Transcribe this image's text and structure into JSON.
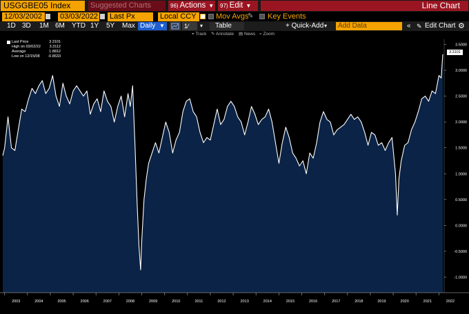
{
  "title_bar": {
    "ticker": "USGGBE05 Index",
    "suggested_charts": "Suggested Charts",
    "actions_num": "96)",
    "actions_label": "Actions",
    "edit_num": "97)",
    "edit_label": "Edit",
    "chart_title": "Line Chart"
  },
  "field_bar": {
    "start_date": "12/03/2002",
    "end_date": "03/03/2022",
    "field": "Last Px",
    "currency": "Local CCY",
    "mov_avgs": "Mov Avgs",
    "key_events": "Key Events"
  },
  "range_bar": {
    "ranges": [
      "1D",
      "3D",
      "1M",
      "6M",
      "YTD",
      "1Y",
      "5Y",
      "Max"
    ],
    "frequency": "Daily",
    "table_label": "Table",
    "quick_add": "+ Quick-Add",
    "add_data_placeholder": "Add Data",
    "edit_chart": "Edit Chart"
  },
  "chart_tools": {
    "track": "Track",
    "annotate": "Annotate",
    "news": "News",
    "zoom": "Zoom"
  },
  "legend": {
    "last_price_label": "Last Price",
    "last_price_value": "3.3101",
    "high_label": "High on 03/02/22",
    "high_value": "3.3112",
    "average_label": "Average",
    "average_value": "1.8812",
    "low_label": "Low on 12/15/08",
    "low_value": "-0.8633"
  },
  "colors": {
    "accent_orange": "#f5a300",
    "title_red": "#9a1522",
    "area_fill": "#0b2346",
    "line": "#ffffff"
  },
  "chart_data": {
    "type": "area",
    "series": [
      {
        "name": "Last Price",
        "x": [
          2002.92,
          2003.0,
          2003.15,
          2003.3,
          2003.45,
          2003.6,
          2003.75,
          2003.9,
          2004.05,
          2004.2,
          2004.35,
          2004.5,
          2004.65,
          2004.8,
          2004.95,
          2005.1,
          2005.25,
          2005.4,
          2005.55,
          2005.7,
          2005.85,
          2006.0,
          2006.15,
          2006.3,
          2006.45,
          2006.6,
          2006.75,
          2006.9,
          2007.05,
          2007.2,
          2007.35,
          2007.5,
          2007.65,
          2007.8,
          2007.95,
          2008.1,
          2008.25,
          2008.4,
          2008.5,
          2008.6,
          2008.7,
          2008.8,
          2008.88,
          2008.95,
          2009.0,
          2009.1,
          2009.2,
          2009.3,
          2009.45,
          2009.6,
          2009.75,
          2009.9,
          2010.05,
          2010.2,
          2010.35,
          2010.5,
          2010.65,
          2010.8,
          2010.95,
          2011.1,
          2011.25,
          2011.4,
          2011.55,
          2011.7,
          2011.85,
          2012.0,
          2012.15,
          2012.3,
          2012.45,
          2012.6,
          2012.75,
          2012.9,
          2013.05,
          2013.2,
          2013.35,
          2013.5,
          2013.65,
          2013.8,
          2013.95,
          2014.1,
          2014.25,
          2014.4,
          2014.55,
          2014.7,
          2014.85,
          2015.0,
          2015.15,
          2015.3,
          2015.45,
          2015.6,
          2015.75,
          2015.9,
          2016.05,
          2016.2,
          2016.35,
          2016.5,
          2016.65,
          2016.8,
          2016.95,
          2017.1,
          2017.25,
          2017.4,
          2017.55,
          2017.7,
          2017.85,
          2018.0,
          2018.15,
          2018.3,
          2018.45,
          2018.6,
          2018.75,
          2018.9,
          2019.05,
          2019.2,
          2019.35,
          2019.5,
          2019.65,
          2019.8,
          2019.95,
          2020.1,
          2020.18,
          2020.25,
          2020.35,
          2020.5,
          2020.65,
          2020.8,
          2020.95,
          2021.1,
          2021.25,
          2021.4,
          2021.55,
          2021.7,
          2021.85,
          2022.0,
          2022.1,
          2022.17
        ],
        "y": [
          1.35,
          1.5,
          2.1,
          1.5,
          1.45,
          1.85,
          2.25,
          2.2,
          2.45,
          2.65,
          2.55,
          2.7,
          2.8,
          2.55,
          2.65,
          2.9,
          2.5,
          2.3,
          2.75,
          2.5,
          2.35,
          2.6,
          2.7,
          2.6,
          2.5,
          2.6,
          2.15,
          2.35,
          2.45,
          2.2,
          2.6,
          2.4,
          2.3,
          2.0,
          2.3,
          2.5,
          2.1,
          2.55,
          2.3,
          2.7,
          1.6,
          0.4,
          -0.4,
          -0.86,
          -0.3,
          0.5,
          0.9,
          1.2,
          1.4,
          1.6,
          1.4,
          1.7,
          2.0,
          1.8,
          1.4,
          1.65,
          1.8,
          2.2,
          2.4,
          2.45,
          2.2,
          2.1,
          1.8,
          1.6,
          1.7,
          1.65,
          1.95,
          2.25,
          1.95,
          2.05,
          2.3,
          2.4,
          2.3,
          2.1,
          2.0,
          1.75,
          2.0,
          2.3,
          2.15,
          1.95,
          2.05,
          2.1,
          2.25,
          2.0,
          1.6,
          1.2,
          1.6,
          1.9,
          1.7,
          1.4,
          1.3,
          1.15,
          1.25,
          1.0,
          1.4,
          1.3,
          1.6,
          2.0,
          2.2,
          2.05,
          2.0,
          1.75,
          1.85,
          1.9,
          1.95,
          2.05,
          2.15,
          2.05,
          2.1,
          2.0,
          1.8,
          1.55,
          1.8,
          1.75,
          1.55,
          1.6,
          1.45,
          1.6,
          1.7,
          1.0,
          0.2,
          0.9,
          1.25,
          1.55,
          1.6,
          1.85,
          2.0,
          2.2,
          2.45,
          2.5,
          2.4,
          2.6,
          2.55,
          2.9,
          2.85,
          3.31
        ]
      }
    ],
    "x_ticks": [
      "2003",
      "2004",
      "2005",
      "2006",
      "2007",
      "2008",
      "2009",
      "2010",
      "2011",
      "2012",
      "2013",
      "2014",
      "2015",
      "2016",
      "2017",
      "2018",
      "2019",
      "2020",
      "2021",
      "2022"
    ],
    "y_ticks": [
      "3.5000",
      "3.0000",
      "2.5000",
      "2.0000",
      "1.5000",
      "1.0000",
      "0.5000",
      "0.0000",
      "-0.5000",
      "-1.0000"
    ],
    "xlim": [
      2002.92,
      2022.17
    ],
    "ylim": [
      -1.3,
      3.6
    ],
    "last_value_label": "3.3101",
    "grid": false,
    "legend_position": "top-left"
  }
}
